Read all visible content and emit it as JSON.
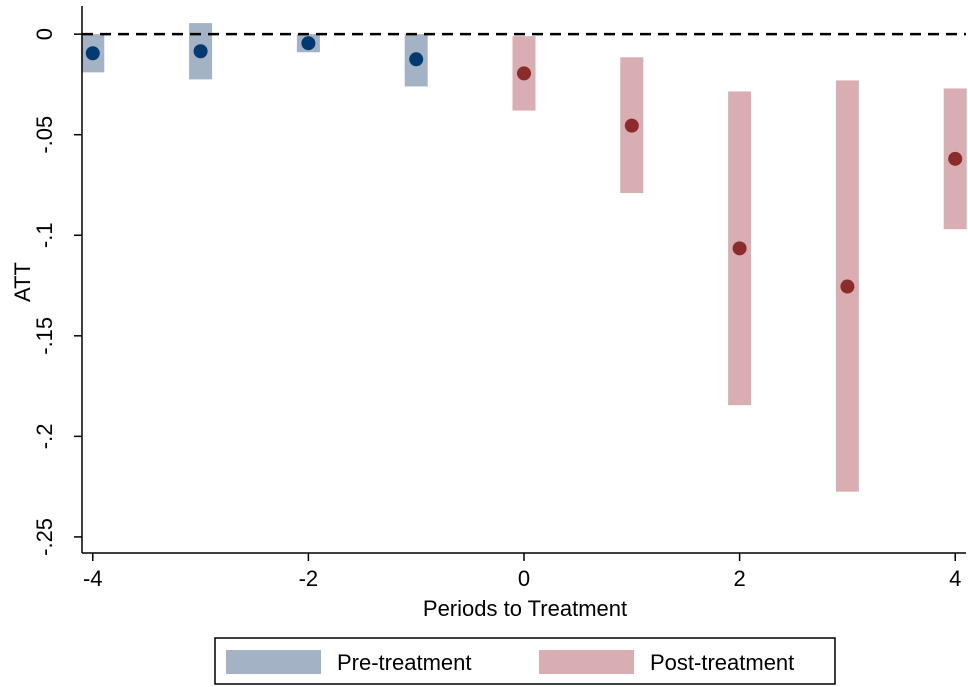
{
  "chart_data": {
    "type": "scatter",
    "xlabel": "Periods to Treatment",
    "ylabel": "ATT",
    "x_ticks": [
      -4,
      -2,
      0,
      2,
      4
    ],
    "x_tick_labels": [
      "-4",
      "-2",
      "0",
      "2",
      "4"
    ],
    "y_ticks": [
      0,
      -0.05,
      -0.1,
      -0.15,
      -0.2,
      -0.25
    ],
    "y_tick_labels": [
      "0",
      "-.05",
      "-.1",
      "-.15",
      "-.2",
      "-.25"
    ],
    "xlim": [
      -4.1,
      4.1
    ],
    "ylim": [
      -0.258,
      0.014
    ],
    "reference_line": {
      "y": 0,
      "style": "dashed"
    },
    "grid": false,
    "legend_position": "bottom",
    "series": [
      {
        "name": "Pre-treatment",
        "color_ci": "#a3b2c4",
        "color_point": "#003a70",
        "points": [
          {
            "x": -4,
            "y": -0.0095,
            "ci_low": -0.019,
            "ci_high": 0.0
          },
          {
            "x": -3,
            "y": -0.0085,
            "ci_low": -0.0225,
            "ci_high": 0.0055
          },
          {
            "x": -2,
            "y": -0.0045,
            "ci_low": -0.009,
            "ci_high": 0.0
          },
          {
            "x": -1,
            "y": -0.0125,
            "ci_low": -0.026,
            "ci_high": 0.0
          }
        ]
      },
      {
        "name": "Post-treatment",
        "color_ci": "#d8aeb2",
        "color_point": "#8b2b2b",
        "points": [
          {
            "x": 0,
            "y": -0.0195,
            "ci_low": -0.038,
            "ci_high": -0.001
          },
          {
            "x": 1,
            "y": -0.0455,
            "ci_low": -0.079,
            "ci_high": -0.0115
          },
          {
            "x": 2,
            "y": -0.1065,
            "ci_low": -0.1845,
            "ci_high": -0.0285
          },
          {
            "x": 3,
            "y": -0.1255,
            "ci_low": -0.2275,
            "ci_high": -0.023
          },
          {
            "x": 4,
            "y": -0.062,
            "ci_low": -0.097,
            "ci_high": -0.027
          }
        ]
      }
    ]
  }
}
